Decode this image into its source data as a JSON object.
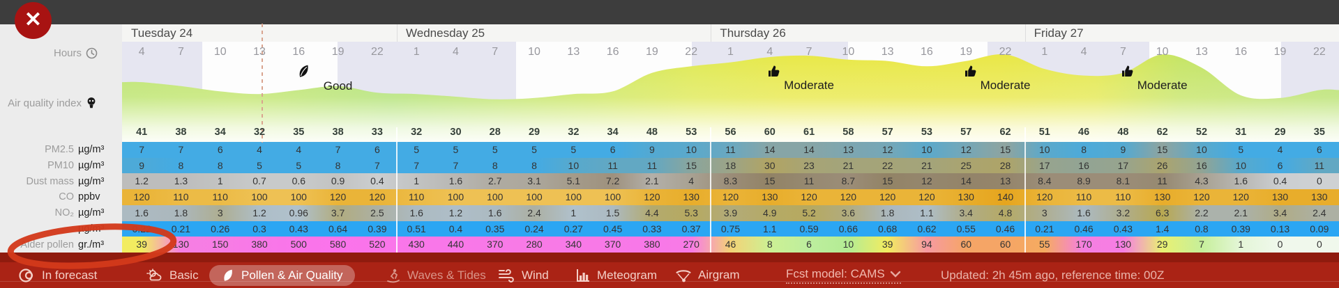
{
  "window": {
    "close_label": "✕"
  },
  "left_labels": {
    "hours": "Hours",
    "aqi": "Air quality index"
  },
  "days": [
    {
      "label": "Tuesday 24",
      "hours": [
        4,
        7,
        10,
        13,
        16,
        19,
        22
      ]
    },
    {
      "label": "Wednesday 25",
      "hours": [
        1,
        4,
        7,
        10,
        13,
        16,
        19,
        22
      ]
    },
    {
      "label": "Thursday 26",
      "hours": [
        1,
        4,
        7,
        10,
        13,
        16,
        19,
        22
      ]
    },
    {
      "label": "Friday 27",
      "hours": [
        1,
        4,
        7,
        10,
        13,
        16,
        19,
        22
      ]
    }
  ],
  "aqi": {
    "values": [
      41,
      38,
      34,
      32,
      35,
      38,
      33,
      32,
      30,
      28,
      29,
      32,
      34,
      48,
      53,
      56,
      60,
      61,
      58,
      57,
      53,
      57,
      62,
      51,
      46,
      48,
      62,
      52,
      31,
      29,
      35
    ],
    "markers": [
      {
        "col": 5,
        "label": "Good",
        "icon": "leaf-icon"
      },
      {
        "col": 17,
        "label": "Moderate",
        "icon": "thumb-icon"
      },
      {
        "col": 22,
        "label": "Moderate",
        "icon": "thumb-icon"
      },
      {
        "col": 26,
        "label": "Moderate",
        "icon": "thumb-icon"
      }
    ]
  },
  "rows": [
    {
      "id": "pm2_5",
      "label": "PM2.5",
      "unit": "µg/m³",
      "values": [
        7,
        7,
        6,
        4,
        4,
        7,
        6,
        5,
        5,
        5,
        5,
        5,
        6,
        9,
        10,
        11,
        14,
        14,
        13,
        12,
        10,
        12,
        15,
        10,
        8,
        9,
        15,
        10,
        5,
        4,
        6
      ],
      "colors": [
        "#43abe4",
        "#43abe4",
        "#43abe4",
        "#43abe4",
        "#43abe4",
        "#43abe4",
        "#43abe4",
        "#43abe4",
        "#43abe4",
        "#43abe4",
        "#43abe4",
        "#43abe4",
        "#43abe4",
        "#53a9d2",
        "#5ba9cb",
        "#6aa8c0",
        "#87a5a6",
        "#87a5a6",
        "#7da6b0",
        "#75a7b7",
        "#5ba9cb",
        "#75a7b7",
        "#8fa49f",
        "#5ba9cb",
        "#4caad9",
        "#53a9d2",
        "#8fa49f",
        "#5ba9cb",
        "#43abe4",
        "#43abe4",
        "#43abe4"
      ]
    },
    {
      "id": "pm10",
      "label": "PM10",
      "unit": "µg/m³",
      "values": [
        9,
        8,
        8,
        5,
        5,
        8,
        7,
        7,
        7,
        8,
        8,
        10,
        11,
        11,
        15,
        18,
        30,
        23,
        21,
        22,
        21,
        25,
        28,
        17,
        16,
        17,
        26,
        16,
        10,
        6,
        11
      ],
      "colors": [
        "#4daad8",
        "#43abe4",
        "#43abe4",
        "#43abe4",
        "#43abe4",
        "#43abe4",
        "#43abe4",
        "#43abe4",
        "#43abe4",
        "#43abe4",
        "#43abe4",
        "#57a9cd",
        "#62a8c3",
        "#62a8c3",
        "#8aa59d",
        "#9ca487",
        "#b1a463",
        "#a7a475",
        "#a3a47b",
        "#a5a478",
        "#a3a47b",
        "#aaa470",
        "#aea468",
        "#97a48e",
        "#92a494",
        "#97a48e",
        "#aba46e",
        "#92a494",
        "#57a9cd",
        "#43abe4",
        "#62a8c3"
      ]
    },
    {
      "id": "dust_mass",
      "label": "Dust mass",
      "unit": "µg/m³",
      "values": [
        1.2,
        1.3,
        1,
        0.7,
        0.6,
        0.9,
        0.4,
        1,
        1.6,
        2.7,
        3.1,
        5.1,
        7.2,
        2.1,
        4,
        8.3,
        15,
        11,
        8.7,
        15,
        12,
        14,
        13,
        8.4,
        8.9,
        8.1,
        11,
        4.3,
        1.6,
        0.4,
        0
      ],
      "colors": [
        "#bdbdbc",
        "#bdbdbc",
        "#c2c3c2",
        "#c8caca",
        "#c8caca",
        "#c2c3c2",
        "#cbced0",
        "#c2c3c2",
        "#b8b7b3",
        "#afaba1",
        "#aca79c",
        "#a49b8a",
        "#9e917e",
        "#b3b0a9",
        "#a8a192",
        "#9b8d78",
        "#928366",
        "#968971",
        "#9b8d78",
        "#928366",
        "#95876e",
        "#938469",
        "#94856b",
        "#9b8d78",
        "#9b8d78",
        "#9b8d78",
        "#968971",
        "#a8a192",
        "#b8b7b3",
        "#cbced0",
        "#ced1d3"
      ]
    },
    {
      "id": "co",
      "label": "CO",
      "unit": "ppbv",
      "values": [
        120,
        110,
        110,
        100,
        100,
        120,
        120,
        110,
        100,
        100,
        100,
        100,
        100,
        120,
        130,
        120,
        130,
        120,
        120,
        120,
        120,
        130,
        140,
        120,
        110,
        110,
        130,
        120,
        120,
        130,
        130
      ],
      "colors": [
        "#eab438",
        "#ecbb46",
        "#ecbb46",
        "#eec154",
        "#eec154",
        "#eab438",
        "#eab438",
        "#ecbb46",
        "#eec154",
        "#eec154",
        "#eec154",
        "#eec154",
        "#eec154",
        "#eab438",
        "#e8ad2b",
        "#eab438",
        "#e8ad2b",
        "#eab438",
        "#eab438",
        "#eab438",
        "#eab438",
        "#e8ad2b",
        "#e6a51e",
        "#eab438",
        "#ecbb46",
        "#ecbb46",
        "#e8ad2b",
        "#eab438",
        "#eab438",
        "#e8ad2b",
        "#e8ad2b"
      ]
    },
    {
      "id": "no2",
      "label": "NO₂",
      "unit": "µg/m³",
      "values": [
        1.6,
        1.8,
        3,
        1.2,
        0.96,
        3.7,
        2.5,
        1.6,
        1.2,
        1.6,
        2.4,
        1,
        1.5,
        4.4,
        5.3,
        3.9,
        4.9,
        5.2,
        3.6,
        1.8,
        1.1,
        3.4,
        4.8,
        3,
        1.6,
        3.2,
        6.3,
        2.2,
        2.1,
        3.4,
        2.4
      ],
      "colors": [
        "#acbac1",
        "#abb7bc",
        "#aeae92",
        "#aebec8",
        "#b0c1cc",
        "#b1ac7f",
        "#acb0a3",
        "#acbac1",
        "#aebec8",
        "#acbac1",
        "#acb0a3",
        "#b0c1cc",
        "#acbac1",
        "#b3aa6e",
        "#b6a960",
        "#b2ab79",
        "#b5aa66",
        "#b6a960",
        "#b1ac7f",
        "#abb7bc",
        "#aebec8",
        "#b0ac86",
        "#b5aa66",
        "#aeae92",
        "#acbac1",
        "#afad8c",
        "#b8a851",
        "#abb2ab",
        "#abb2ab",
        "#b0ac86",
        "#acb0a3"
      ]
    },
    {
      "id": "obscured_row",
      "label": "",
      "unit": "µg/m³",
      "values": [
        0.22,
        0.21,
        0.26,
        0.3,
        0.43,
        0.64,
        0.39,
        0.51,
        0.4,
        0.35,
        0.24,
        0.27,
        0.45,
        0.33,
        0.37,
        0.75,
        1.1,
        0.59,
        0.66,
        0.68,
        0.62,
        0.55,
        0.46,
        0.21,
        0.46,
        0.43,
        1.4,
        0.8,
        0.39,
        0.13,
        0.09
      ],
      "colors": [
        "#2ba6f3",
        "#2ba6f3",
        "#2ba6f3",
        "#2ba6f3",
        "#2ba6f3",
        "#2ba6f3",
        "#2ba6f3",
        "#2ba6f3",
        "#2ba6f3",
        "#2ba6f3",
        "#2ba6f3",
        "#2ba6f3",
        "#2ba6f3",
        "#2ba6f3",
        "#2ba6f3",
        "#2ba6f3",
        "#2ba6f3",
        "#2ba6f3",
        "#2ba6f3",
        "#2ba6f3",
        "#2ba6f3",
        "#2ba6f3",
        "#2ba6f3",
        "#2ba6f3",
        "#2ba6f3",
        "#2ba6f3",
        "#2ba6f3",
        "#2ba6f3",
        "#2ba6f3",
        "#2ba6f3",
        "#2ba6f3"
      ]
    },
    {
      "id": "alder_pollen",
      "label": "Alder pollen",
      "unit": "gr./m³",
      "values": [
        39,
        130,
        150,
        380,
        500,
        580,
        520,
        430,
        440,
        370,
        280,
        340,
        370,
        380,
        270,
        46,
        8,
        6,
        10,
        39,
        94,
        60,
        60,
        55,
        170,
        130,
        29,
        7,
        1,
        0,
        0
      ],
      "colors": [
        "#f2ec60",
        "#f67ee3",
        "#f77de4",
        "#f878e8",
        "#fa75ea",
        "#fb73eb",
        "#fa75ea",
        "#f977e9",
        "#f977e9",
        "#f879e7",
        "#f87be6",
        "#f879e7",
        "#f879e7",
        "#f878e8",
        "#f87be6",
        "#f3d276",
        "#cdf094",
        "#bdee9e",
        "#b4ec94",
        "#f2ec60",
        "#f79aa2",
        "#f5a566",
        "#f5a566",
        "#f5ab60",
        "#f57fe2",
        "#f67ee3",
        "#e9f072",
        "#c6ef9a",
        "#e4f6d8",
        "#f0f8ec",
        "#f0f8ec"
      ]
    }
  ],
  "bottom_bar": {
    "items": [
      {
        "id": "in-forecast",
        "label": "In forecast",
        "icon": "overlay-icon"
      },
      {
        "id": "basic",
        "label": "Basic",
        "icon": "sun-cloud-icon"
      },
      {
        "id": "pollen-air-quality",
        "label": "Pollen & Air Quality",
        "icon": "leaf-icon",
        "selected": true
      },
      {
        "id": "waves-tides",
        "label": "Waves & Tides",
        "icon": "surfer-icon",
        "dim": true
      },
      {
        "id": "wind",
        "label": "Wind",
        "icon": "wind-icon"
      },
      {
        "id": "meteogram",
        "label": "Meteogram",
        "icon": "bar-chart-icon"
      },
      {
        "id": "airgram",
        "label": "Airgram",
        "icon": "paraglider-icon"
      }
    ],
    "model_label": "Fcst model: CAMS",
    "updated": "Updated: 2h 45m ago, reference time: 00Z"
  },
  "colors": {
    "bar_red": "#aa2315",
    "maroon_divider": "#8f1b0e",
    "night_shade": "#e6e6f1",
    "annotation_red": "#d2391b",
    "close_red": "#a81312",
    "topbar": "#3d3d3d"
  }
}
